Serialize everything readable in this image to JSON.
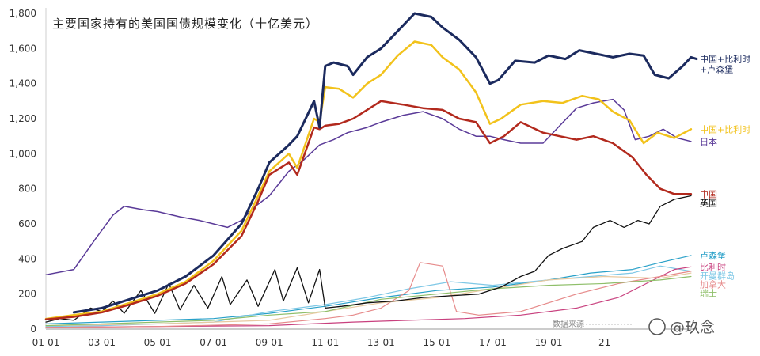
{
  "chart_data": {
    "type": "line",
    "title": "主要国家持有的美国国债规模变化（十亿美元）",
    "xlabel": "",
    "ylabel": "",
    "x_ticks": [
      "01-01",
      "03-01",
      "05-01",
      "07-01",
      "09-01",
      "11-01",
      "13-01",
      "15-01",
      "17-01",
      "19-01",
      "21"
    ],
    "ylim": [
      0,
      1800
    ],
    "y_ticks": [
      0,
      200,
      400,
      600,
      800,
      1000,
      1200,
      1400,
      1600,
      1800
    ],
    "y_tick_labels": [
      "0",
      "200",
      "400",
      "600",
      "800",
      "1,000",
      "1,200",
      "1,400",
      "1,600",
      "1,800"
    ],
    "grid": false,
    "source_note": "数据来源",
    "series": [
      {
        "label_lines": [
          "中国+比利时",
          "+卢森堡"
        ],
        "color": "#1b2a5e",
        "width": 3,
        "points": [
          [
            2002.0,
            95
          ],
          [
            2003.0,
            120
          ],
          [
            2004.0,
            170
          ],
          [
            2005.0,
            220
          ],
          [
            2006.0,
            300
          ],
          [
            2007.0,
            420
          ],
          [
            2008.0,
            600
          ],
          [
            2008.6,
            800
          ],
          [
            2009.0,
            950
          ],
          [
            2009.7,
            1050
          ],
          [
            2010.0,
            1100
          ],
          [
            2010.6,
            1300
          ],
          [
            2010.8,
            1150
          ],
          [
            2011.0,
            1500
          ],
          [
            2011.3,
            1520
          ],
          [
            2011.8,
            1500
          ],
          [
            2012.0,
            1450
          ],
          [
            2012.5,
            1550
          ],
          [
            2013.0,
            1600
          ],
          [
            2013.6,
            1700
          ],
          [
            2014.2,
            1800
          ],
          [
            2014.8,
            1780
          ],
          [
            2015.2,
            1720
          ],
          [
            2015.8,
            1650
          ],
          [
            2016.4,
            1550
          ],
          [
            2016.9,
            1400
          ],
          [
            2017.2,
            1420
          ],
          [
            2017.8,
            1530
          ],
          [
            2018.5,
            1520
          ],
          [
            2019.0,
            1560
          ],
          [
            2019.6,
            1540
          ],
          [
            2020.1,
            1590
          ],
          [
            2020.7,
            1570
          ],
          [
            2021.3,
            1550
          ],
          [
            2021.9,
            1570
          ],
          [
            2022.4,
            1560
          ],
          [
            2022.8,
            1450
          ],
          [
            2023.3,
            1430
          ],
          [
            2023.8,
            1500
          ],
          [
            2024.1,
            1550
          ],
          [
            2024.3,
            1540
          ]
        ]
      },
      {
        "label_lines": [
          "中国+比利时"
        ],
        "color": "#f2c21b",
        "width": 2.5,
        "points": [
          [
            2001.0,
            58
          ],
          [
            2002.0,
            80
          ],
          [
            2003.0,
            100
          ],
          [
            2004.0,
            150
          ],
          [
            2005.0,
            200
          ],
          [
            2006.0,
            270
          ],
          [
            2007.0,
            390
          ],
          [
            2008.0,
            560
          ],
          [
            2008.6,
            760
          ],
          [
            2009.0,
            900
          ],
          [
            2009.7,
            1000
          ],
          [
            2010.0,
            920
          ],
          [
            2010.6,
            1200
          ],
          [
            2010.8,
            1180
          ],
          [
            2011.0,
            1380
          ],
          [
            2011.5,
            1370
          ],
          [
            2012.0,
            1320
          ],
          [
            2012.5,
            1400
          ],
          [
            2013.0,
            1450
          ],
          [
            2013.6,
            1560
          ],
          [
            2014.2,
            1640
          ],
          [
            2014.8,
            1620
          ],
          [
            2015.2,
            1550
          ],
          [
            2015.8,
            1480
          ],
          [
            2016.4,
            1350
          ],
          [
            2016.9,
            1170
          ],
          [
            2017.3,
            1200
          ],
          [
            2018.0,
            1280
          ],
          [
            2018.8,
            1300
          ],
          [
            2019.5,
            1290
          ],
          [
            2020.2,
            1330
          ],
          [
            2020.8,
            1310
          ],
          [
            2021.3,
            1240
          ],
          [
            2021.9,
            1190
          ],
          [
            2022.4,
            1060
          ],
          [
            2022.9,
            1120
          ],
          [
            2023.5,
            1090
          ],
          [
            2024.1,
            1140
          ]
        ]
      },
      {
        "label_lines": [
          "日本"
        ],
        "color": "#5a3a98",
        "width": 1.5,
        "points": [
          [
            2001.0,
            310
          ],
          [
            2002.0,
            340
          ],
          [
            2002.8,
            520
          ],
          [
            2003.4,
            650
          ],
          [
            2003.8,
            700
          ],
          [
            2004.5,
            680
          ],
          [
            2005.0,
            670
          ],
          [
            2005.8,
            640
          ],
          [
            2006.5,
            620
          ],
          [
            2007.0,
            600
          ],
          [
            2007.5,
            580
          ],
          [
            2008.0,
            620
          ],
          [
            2008.5,
            700
          ],
          [
            2009.0,
            760
          ],
          [
            2009.7,
            900
          ],
          [
            2010.2,
            960
          ],
          [
            2010.8,
            1050
          ],
          [
            2011.3,
            1080
          ],
          [
            2011.8,
            1120
          ],
          [
            2012.5,
            1150
          ],
          [
            2013.0,
            1180
          ],
          [
            2013.8,
            1220
          ],
          [
            2014.5,
            1240
          ],
          [
            2015.2,
            1200
          ],
          [
            2015.8,
            1140
          ],
          [
            2016.4,
            1100
          ],
          [
            2016.9,
            1100
          ],
          [
            2017.4,
            1080
          ],
          [
            2018.0,
            1060
          ],
          [
            2018.8,
            1060
          ],
          [
            2019.4,
            1160
          ],
          [
            2020.0,
            1260
          ],
          [
            2020.6,
            1290
          ],
          [
            2021.3,
            1310
          ],
          [
            2021.7,
            1250
          ],
          [
            2022.1,
            1080
          ],
          [
            2022.6,
            1100
          ],
          [
            2023.1,
            1140
          ],
          [
            2023.6,
            1090
          ],
          [
            2024.1,
            1070
          ]
        ]
      },
      {
        "label_lines": [
          "中国"
        ],
        "color": "#b2291d",
        "width": 2.5,
        "points": [
          [
            2001.0,
            55
          ],
          [
            2002.0,
            70
          ],
          [
            2003.0,
            95
          ],
          [
            2004.0,
            140
          ],
          [
            2005.0,
            190
          ],
          [
            2006.0,
            260
          ],
          [
            2007.0,
            370
          ],
          [
            2008.0,
            530
          ],
          [
            2008.6,
            730
          ],
          [
            2009.0,
            880
          ],
          [
            2009.7,
            950
          ],
          [
            2010.0,
            880
          ],
          [
            2010.6,
            1150
          ],
          [
            2010.8,
            1140
          ],
          [
            2011.0,
            1160
          ],
          [
            2011.5,
            1170
          ],
          [
            2012.0,
            1200
          ],
          [
            2012.5,
            1250
          ],
          [
            2013.0,
            1300
          ],
          [
            2013.8,
            1280
          ],
          [
            2014.5,
            1260
          ],
          [
            2015.2,
            1250
          ],
          [
            2015.8,
            1200
          ],
          [
            2016.4,
            1180
          ],
          [
            2016.9,
            1060
          ],
          [
            2017.4,
            1100
          ],
          [
            2018.0,
            1180
          ],
          [
            2018.8,
            1120
          ],
          [
            2019.4,
            1100
          ],
          [
            2020.0,
            1080
          ],
          [
            2020.6,
            1100
          ],
          [
            2021.3,
            1060
          ],
          [
            2022.0,
            980
          ],
          [
            2022.5,
            880
          ],
          [
            2023.0,
            800
          ],
          [
            2023.5,
            770
          ],
          [
            2024.1,
            770
          ]
        ]
      },
      {
        "label_lines": [
          "英国"
        ],
        "color": "#111111",
        "width": 1.3,
        "points": [
          [
            2001.0,
            40
          ],
          [
            2001.5,
            60
          ],
          [
            2002.0,
            50
          ],
          [
            2002.6,
            120
          ],
          [
            2003.0,
            100
          ],
          [
            2003.4,
            160
          ],
          [
            2003.8,
            90
          ],
          [
            2004.4,
            220
          ],
          [
            2004.9,
            90
          ],
          [
            2005.4,
            260
          ],
          [
            2005.8,
            110
          ],
          [
            2006.3,
            250
          ],
          [
            2006.8,
            120
          ],
          [
            2007.3,
            300
          ],
          [
            2007.6,
            140
          ],
          [
            2008.2,
            280
          ],
          [
            2008.6,
            130
          ],
          [
            2009.2,
            340
          ],
          [
            2009.5,
            160
          ],
          [
            2010.0,
            350
          ],
          [
            2010.4,
            150
          ],
          [
            2010.8,
            340
          ],
          [
            2011.0,
            120
          ],
          [
            2011.6,
            130
          ],
          [
            2012.5,
            150
          ],
          [
            2013.5,
            160
          ],
          [
            2014.5,
            180
          ],
          [
            2015.5,
            190
          ],
          [
            2016.5,
            200
          ],
          [
            2017.3,
            240
          ],
          [
            2018.0,
            300
          ],
          [
            2018.5,
            330
          ],
          [
            2019.0,
            420
          ],
          [
            2019.5,
            460
          ],
          [
            2020.2,
            500
          ],
          [
            2020.6,
            580
          ],
          [
            2021.2,
            620
          ],
          [
            2021.7,
            580
          ],
          [
            2022.2,
            620
          ],
          [
            2022.6,
            600
          ],
          [
            2023.0,
            700
          ],
          [
            2023.5,
            740
          ],
          [
            2024.1,
            760
          ]
        ]
      },
      {
        "label_lines": [
          "卢森堡"
        ],
        "color": "#28a0c8",
        "width": 1.2,
        "points": [
          [
            2001.0,
            30
          ],
          [
            2003.0,
            40
          ],
          [
            2005.0,
            50
          ],
          [
            2007.0,
            60
          ],
          [
            2009.0,
            90
          ],
          [
            2011.0,
            130
          ],
          [
            2013.0,
            180
          ],
          [
            2015.0,
            220
          ],
          [
            2017.0,
            240
          ],
          [
            2019.0,
            280
          ],
          [
            2020.5,
            320
          ],
          [
            2022.0,
            340
          ],
          [
            2023.0,
            380
          ],
          [
            2024.1,
            420
          ]
        ]
      },
      {
        "label_lines": [
          "开曼群岛"
        ],
        "color": "#7fc8e6",
        "width": 1.2,
        "points": [
          [
            2001.0,
            15
          ],
          [
            2003.0,
            20
          ],
          [
            2005.0,
            30
          ],
          [
            2007.0,
            40
          ],
          [
            2009.0,
            100
          ],
          [
            2011.0,
            140
          ],
          [
            2012.5,
            180
          ],
          [
            2014.0,
            230
          ],
          [
            2015.5,
            270
          ],
          [
            2017.0,
            250
          ],
          [
            2019.0,
            280
          ],
          [
            2020.5,
            300
          ],
          [
            2022.0,
            320
          ],
          [
            2023.0,
            360
          ],
          [
            2024.1,
            330
          ]
        ]
      },
      {
        "label_lines": [
          "比利时"
        ],
        "color": "#c8407e",
        "width": 1.2,
        "points": [
          [
            2001.0,
            10
          ],
          [
            2005.0,
            15
          ],
          [
            2009.0,
            20
          ],
          [
            2012.0,
            40
          ],
          [
            2014.0,
            50
          ],
          [
            2016.0,
            60
          ],
          [
            2018.0,
            80
          ],
          [
            2020.0,
            120
          ],
          [
            2021.5,
            180
          ],
          [
            2022.5,
            260
          ],
          [
            2023.5,
            340
          ],
          [
            2024.1,
            355
          ]
        ]
      },
      {
        "label_lines": [
          "加拿大"
        ],
        "color": "#e68a8a",
        "width": 1.2,
        "points": [
          [
            2001.0,
            10
          ],
          [
            2005.0,
            15
          ],
          [
            2009.0,
            30
          ],
          [
            2011.0,
            60
          ],
          [
            2012.0,
            80
          ],
          [
            2013.0,
            120
          ],
          [
            2014.0,
            220
          ],
          [
            2014.4,
            380
          ],
          [
            2015.2,
            360
          ],
          [
            2015.7,
            100
          ],
          [
            2016.5,
            80
          ],
          [
            2018.0,
            100
          ],
          [
            2020.0,
            200
          ],
          [
            2021.5,
            260
          ],
          [
            2023.0,
            300
          ],
          [
            2024.1,
            330
          ]
        ]
      },
      {
        "label_lines": [
          ""
        ],
        "color": "#e8c9a0",
        "width": 1.2,
        "points": [
          [
            2001.0,
            20
          ],
          [
            2005.0,
            30
          ],
          [
            2009.0,
            50
          ],
          [
            2011.0,
            100
          ],
          [
            2013.0,
            150
          ],
          [
            2015.0,
            180
          ],
          [
            2017.0,
            230
          ],
          [
            2019.0,
            280
          ],
          [
            2021.0,
            300
          ],
          [
            2023.0,
            290
          ],
          [
            2024.1,
            320
          ]
        ]
      },
      {
        "label_lines": [
          "瑞士"
        ],
        "color": "#8fbf6a",
        "width": 1.2,
        "points": [
          [
            2001.0,
            20
          ],
          [
            2003.0,
            30
          ],
          [
            2005.0,
            40
          ],
          [
            2007.0,
            50
          ],
          [
            2009.0,
            80
          ],
          [
            2011.0,
            100
          ],
          [
            2013.0,
            170
          ],
          [
            2015.0,
            200
          ],
          [
            2017.0,
            230
          ],
          [
            2019.0,
            250
          ],
          [
            2021.0,
            260
          ],
          [
            2023.0,
            280
          ],
          [
            2024.1,
            300
          ]
        ]
      }
    ]
  },
  "watermark": {
    "text": "@玖念"
  }
}
